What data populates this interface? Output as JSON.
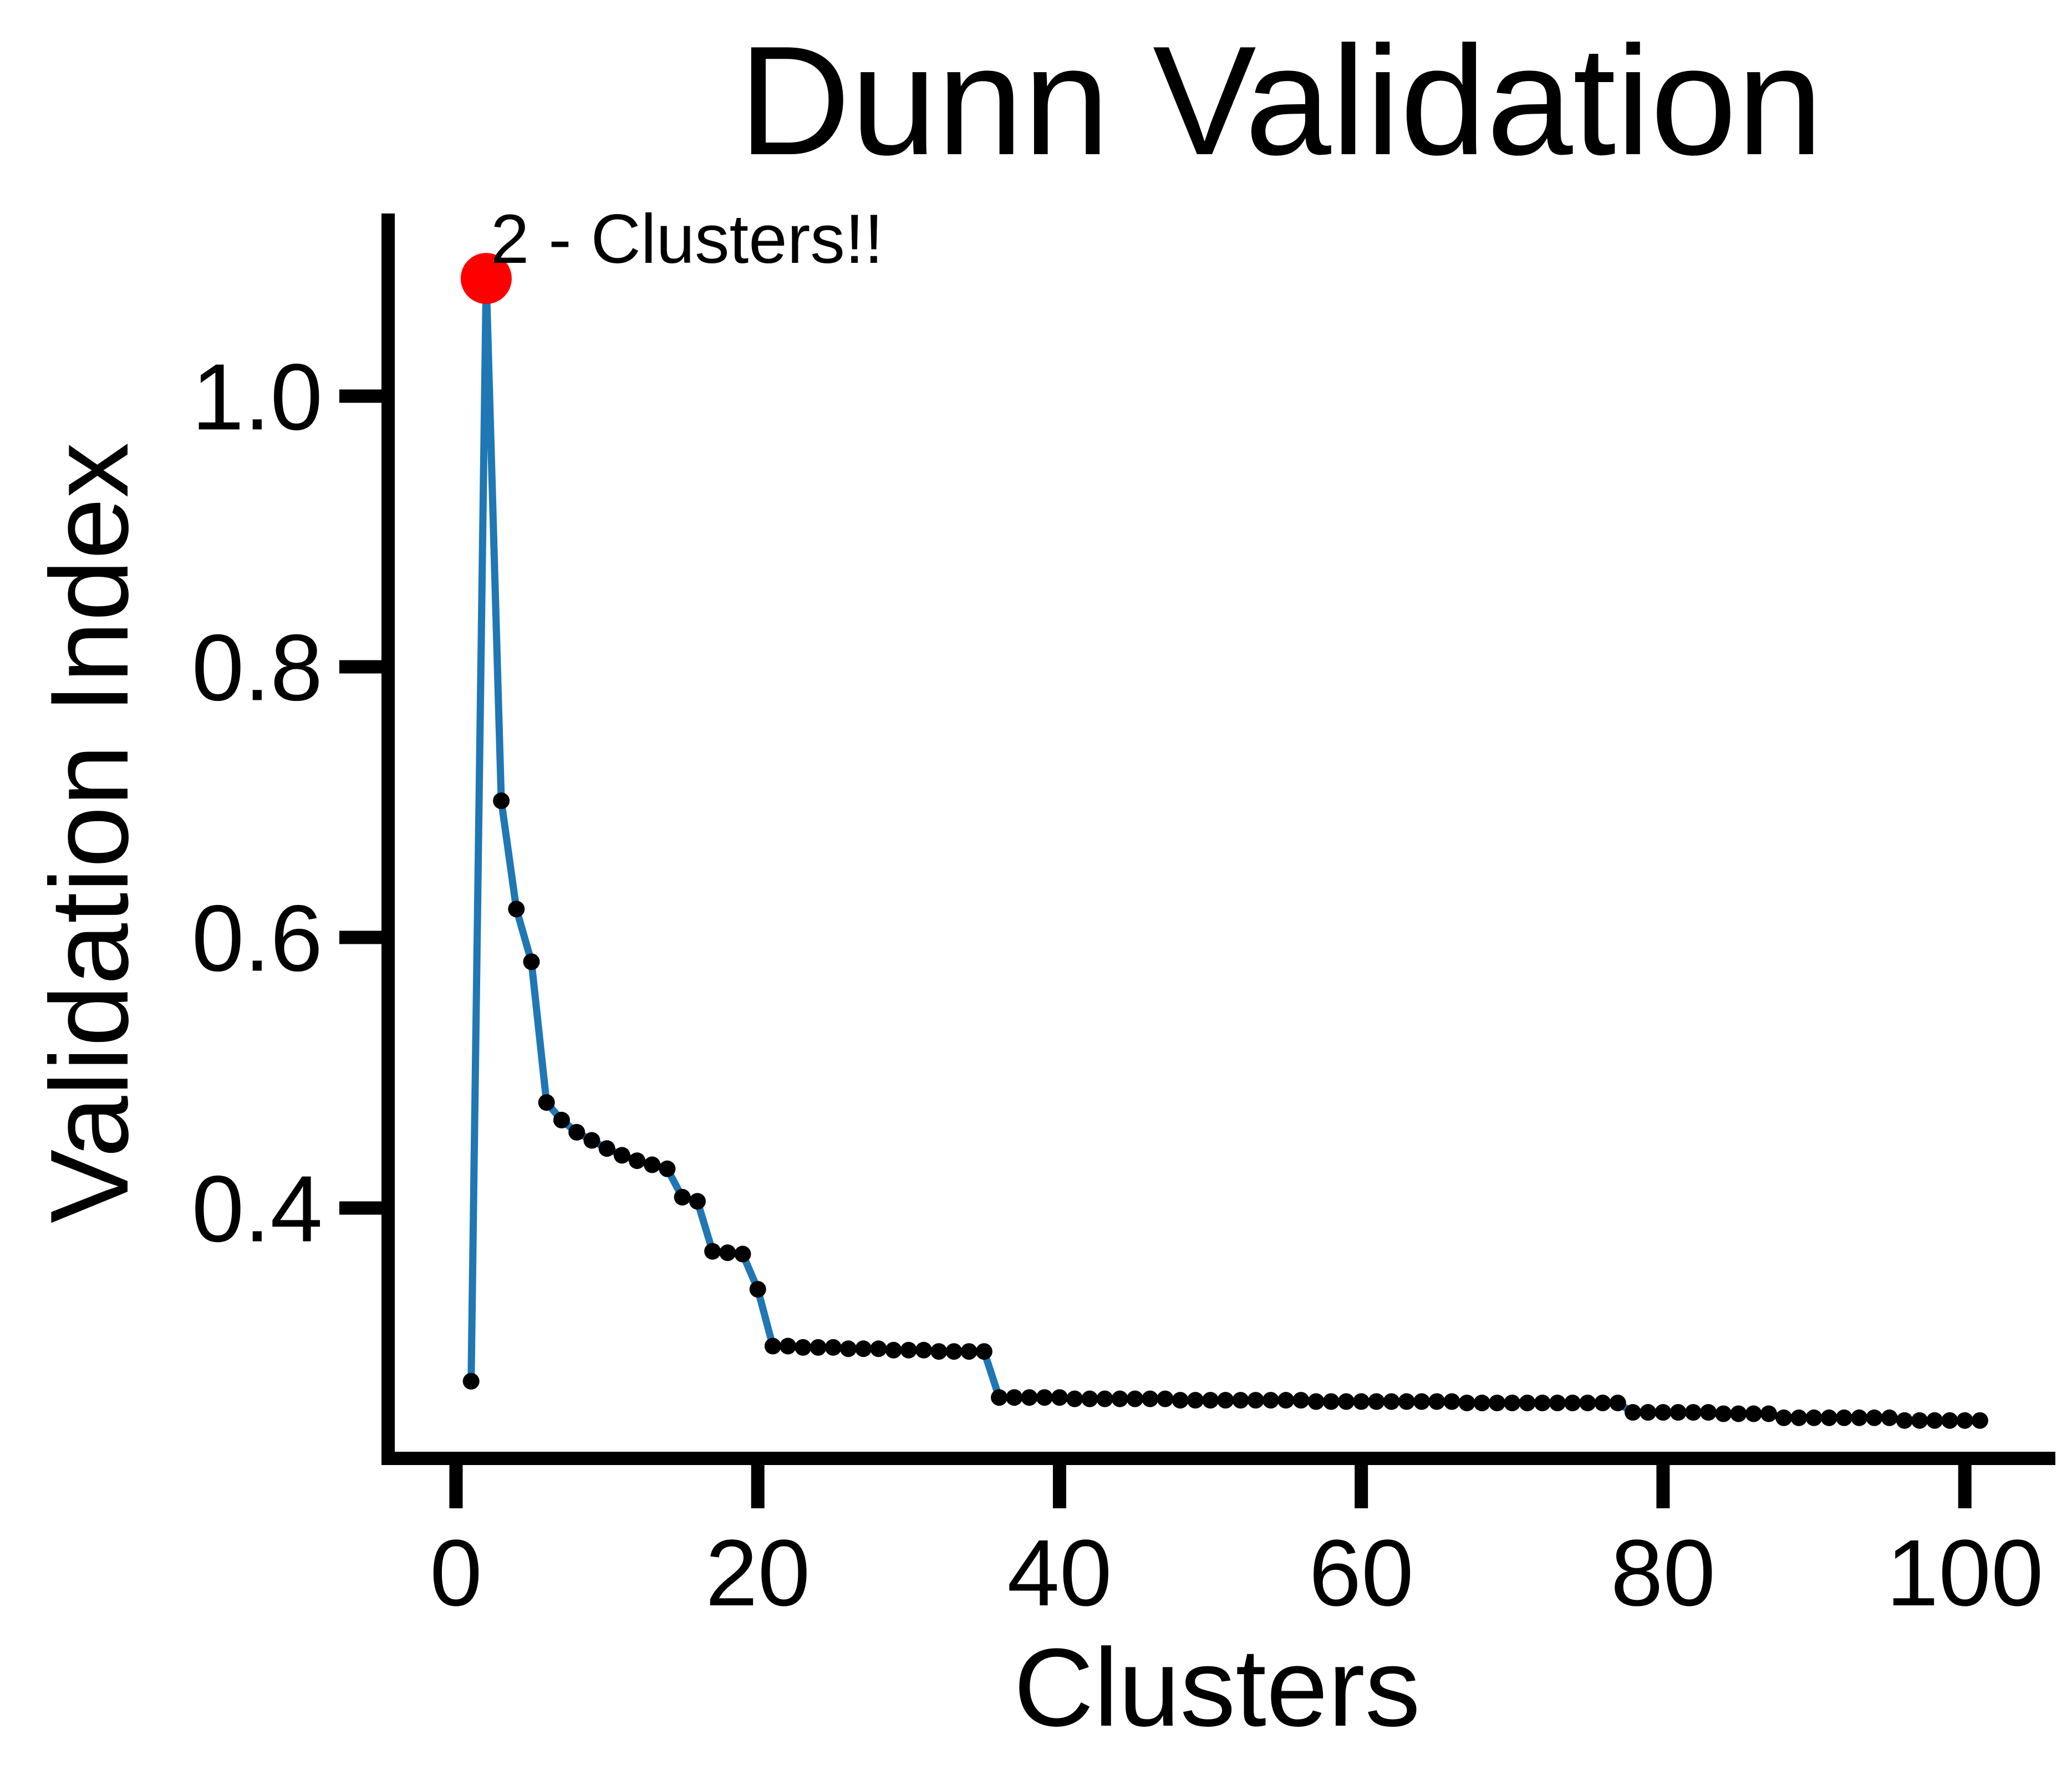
{
  "chart_data": {
    "type": "line",
    "title": "Dunn Validation",
    "xlabel": "Clusters",
    "ylabel": "Validation Index",
    "xlim": [
      -4.5,
      106
    ],
    "ylim": [
      0.215,
      1.135
    ],
    "xticks": [
      0,
      20,
      40,
      60,
      80,
      100
    ],
    "yticks": [
      0.4,
      0.6,
      0.8,
      1.0
    ],
    "xtick_labels": [
      "0",
      "20",
      "40",
      "60",
      "80",
      "100"
    ],
    "ytick_labels": [
      "0.4",
      "0.6",
      "0.8",
      "1.0"
    ],
    "line_color": "#1f77b4",
    "marker_color": "#000000",
    "highlight_color": "#ff0000",
    "grid": false,
    "series": [
      {
        "x": [
          1,
          2,
          3,
          4,
          5,
          6,
          7,
          8,
          9,
          10,
          11,
          12,
          13,
          14,
          15,
          16,
          17,
          18,
          19,
          20,
          21,
          22,
          23,
          24,
          25,
          26,
          27,
          28,
          29,
          30,
          31,
          32,
          33,
          34,
          35,
          36,
          37,
          38,
          39,
          40,
          41,
          42,
          43,
          44,
          45,
          46,
          47,
          48,
          49,
          50,
          51,
          52,
          53,
          54,
          55,
          56,
          57,
          58,
          59,
          60,
          61,
          62,
          63,
          64,
          65,
          66,
          67,
          68,
          69,
          70,
          71,
          72,
          73,
          74,
          75,
          76,
          77,
          78,
          79,
          80,
          81,
          82,
          83,
          84,
          85,
          86,
          87,
          88,
          89,
          90,
          91,
          92,
          93,
          94,
          95,
          96,
          97,
          98,
          99,
          100,
          101
        ],
        "y": [
          0.272,
          1.087,
          0.701,
          0.621,
          0.582,
          0.478,
          0.465,
          0.456,
          0.45,
          0.444,
          0.439,
          0.435,
          0.432,
          0.429,
          0.408,
          0.405,
          0.368,
          0.367,
          0.366,
          0.34,
          0.298,
          0.298,
          0.297,
          0.297,
          0.297,
          0.296,
          0.296,
          0.296,
          0.295,
          0.295,
          0.295,
          0.294,
          0.294,
          0.294,
          0.294,
          0.26,
          0.26,
          0.26,
          0.26,
          0.26,
          0.259,
          0.259,
          0.259,
          0.259,
          0.259,
          0.259,
          0.259,
          0.258,
          0.258,
          0.258,
          0.258,
          0.258,
          0.258,
          0.258,
          0.258,
          0.258,
          0.257,
          0.257,
          0.257,
          0.257,
          0.257,
          0.257,
          0.257,
          0.257,
          0.257,
          0.257,
          0.256,
          0.256,
          0.256,
          0.256,
          0.256,
          0.256,
          0.256,
          0.256,
          0.256,
          0.256,
          0.256,
          0.249,
          0.249,
          0.249,
          0.249,
          0.249,
          0.249,
          0.248,
          0.248,
          0.248,
          0.248,
          0.245,
          0.245,
          0.245,
          0.245,
          0.245,
          0.245,
          0.245,
          0.245,
          0.243,
          0.243,
          0.243,
          0.243,
          0.243,
          0.243
        ]
      }
    ],
    "highlight": {
      "x": 2,
      "y": 1.087
    },
    "annotation": {
      "text": "2 - Clusters!!",
      "x": 2,
      "y": 1.087
    }
  }
}
